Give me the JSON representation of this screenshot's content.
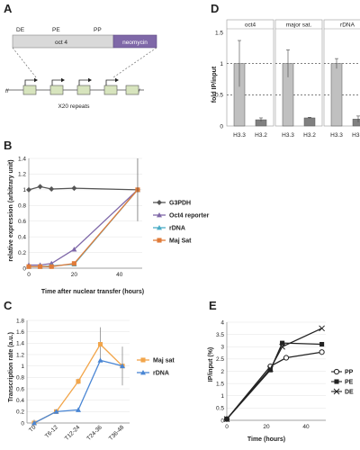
{
  "panels": {
    "a": {
      "letter": "A",
      "labels": [
        "DE",
        "PE",
        "PP"
      ],
      "gene": "oct 4",
      "marker": "neomycin",
      "caption": "X20 repeats",
      "colors": {
        "gene": "#d9d9d9",
        "marker": "#7f68a8"
      }
    },
    "b": {
      "letter": "B"
    },
    "c": {
      "letter": "C"
    },
    "d": {
      "letter": "D"
    },
    "e": {
      "letter": "E"
    }
  },
  "chart_data": [
    {
      "id": "D",
      "type": "bar",
      "ylabel": "fold IP/input",
      "ylim": [
        0,
        1.5
      ],
      "yticks": [
        "0",
        "0.5",
        "1",
        "1.5"
      ],
      "dashed_lines": [
        0.5,
        1
      ],
      "groups": [
        {
          "title": "oct4",
          "categories": [
            "H3.3",
            "H3.2"
          ],
          "values": [
            1.0,
            0.1
          ],
          "errors": [
            0.37,
            0.03
          ]
        },
        {
          "title": "major sat.",
          "categories": [
            "H3.3",
            "H3.2"
          ],
          "values": [
            1.0,
            0.13
          ],
          "errors": [
            0.22,
            0.01
          ]
        },
        {
          "title": "rDNA",
          "categories": [
            "H3.3",
            "H3.2"
          ],
          "values": [
            1.0,
            0.11
          ],
          "errors": [
            0.08,
            0.05
          ]
        }
      ],
      "colors": {
        "H3.3": "#c0c0c0",
        "H3.2": "#808080"
      }
    },
    {
      "id": "B",
      "type": "line",
      "xlabel": "Time after nuclear transfer (hours)",
      "ylabel": "relative expression (arbitrary unit)",
      "xlim": [
        0,
        50
      ],
      "ylim": [
        0,
        1.4
      ],
      "xticks": [
        "0",
        "20",
        "40"
      ],
      "yticks": [
        "0",
        "0.2",
        "0.4",
        "0.6",
        "0.8",
        "1",
        "1.2",
        "1.4"
      ],
      "legend": "right",
      "series": [
        {
          "name": "G3PDH",
          "color": "#555555",
          "marker": "diamond",
          "x": [
            0,
            5,
            10,
            20,
            48
          ],
          "y": [
            1.0,
            1.04,
            1.01,
            1.02,
            1.0
          ]
        },
        {
          "name": "Oct4 reporter",
          "color": "#7f68a8",
          "marker": "triangle",
          "x": [
            0,
            5,
            10,
            20,
            48
          ],
          "y": [
            0.04,
            0.04,
            0.06,
            0.24,
            1.0
          ]
        },
        {
          "name": "rDNA",
          "color": "#4aacc6",
          "marker": "triangle",
          "x": [
            0,
            5,
            10,
            20,
            48
          ],
          "y": [
            0.02,
            0.02,
            0.03,
            0.05,
            1.0
          ]
        },
        {
          "name": "Maj Sat",
          "color": "#e07b39",
          "marker": "square",
          "x": [
            0,
            5,
            10,
            20,
            48
          ],
          "y": [
            0.02,
            0.02,
            0.02,
            0.06,
            1.0
          ]
        }
      ],
      "error_bar": {
        "x": 48,
        "y": 1.0,
        "err": 0.4
      }
    },
    {
      "id": "C",
      "type": "line",
      "ylabel": "Transcription rate (a.u.)",
      "categories": [
        "T0",
        "T6-12",
        "T12-24",
        "T24-36",
        "T36-48"
      ],
      "ylim": [
        0,
        1.8
      ],
      "yticks": [
        "0",
        "0.2",
        "0.4",
        "0.6",
        "0.8",
        "1",
        "1.2",
        "1.4",
        "1.6",
        "1.8"
      ],
      "legend": "right",
      "series": [
        {
          "name": "Maj sat",
          "color": "#f2a54a",
          "marker": "square",
          "values": [
            0.0,
            0.2,
            0.73,
            1.38,
            1.0
          ],
          "errors": [
            0.06,
            0.04,
            0.05,
            0.3,
            0.34
          ]
        },
        {
          "name": "rDNA",
          "color": "#4a86d4",
          "marker": "triangle",
          "values": [
            0.0,
            0.2,
            0.23,
            1.1,
            1.0
          ],
          "errors": [
            0.0,
            0.0,
            0.0,
            0.0,
            0.0
          ]
        }
      ]
    },
    {
      "id": "E",
      "type": "line",
      "xlabel": "Time (hours)",
      "ylabel": "IP/input (%)",
      "xlim": [
        0,
        50
      ],
      "ylim": [
        0,
        4
      ],
      "xticks": [
        "0",
        "20",
        "40"
      ],
      "yticks": [
        "0",
        "0.5",
        "1",
        "1.5",
        "2",
        "2.5",
        "3",
        "3.5",
        "4"
      ],
      "legend": "right",
      "series": [
        {
          "name": "PP",
          "color": "#222222",
          "marker": "circle-open",
          "x": [
            0,
            22,
            30,
            48
          ],
          "y": [
            0.05,
            2.2,
            2.55,
            2.78
          ]
        },
        {
          "name": "PE",
          "color": "#222222",
          "marker": "square",
          "x": [
            0,
            22,
            28,
            48
          ],
          "y": [
            0.05,
            2.05,
            3.15,
            3.1
          ]
        },
        {
          "name": "DE",
          "color": "#222222",
          "marker": "x",
          "x": [
            0,
            22,
            28,
            48
          ],
          "y": [
            0.05,
            2.1,
            3.0,
            3.75
          ]
        }
      ]
    }
  ]
}
